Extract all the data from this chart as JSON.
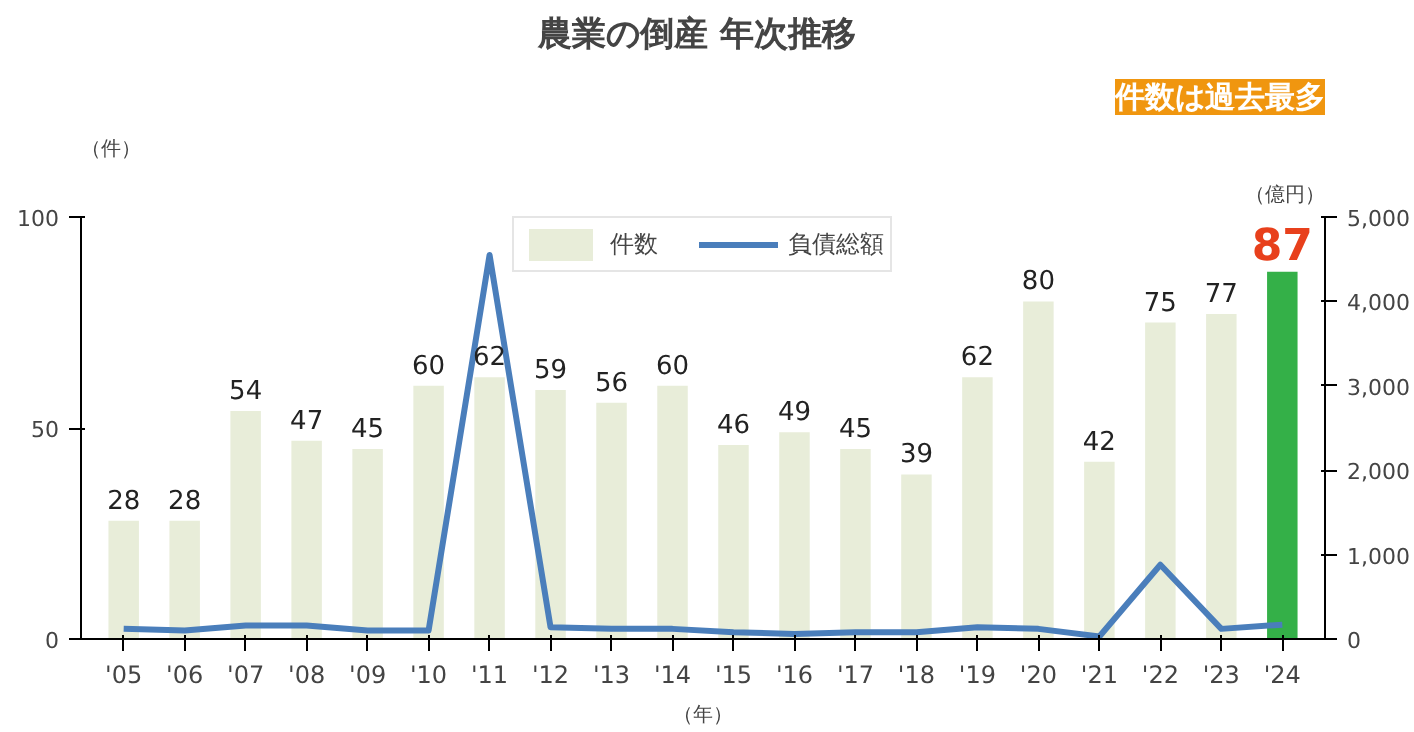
{
  "chart_data": {
    "type": "bar",
    "title": "農業の倒産  年次推移",
    "categories": [
      "'05",
      "'06",
      "'07",
      "'08",
      "'09",
      "'10",
      "'11",
      "'12",
      "'13",
      "'14",
      "'15",
      "'16",
      "'17",
      "'18",
      "'19",
      "'20",
      "'21",
      "'22",
      "'23",
      "'24"
    ],
    "series": [
      {
        "name": "件数",
        "color": "#e8edd9",
        "colors": [
          "#e8edd9",
          "#e8edd9",
          "#e8edd9",
          "#e8edd9",
          "#e8edd9",
          "#e8edd9",
          "#e8edd9",
          "#e8edd9",
          "#e8edd9",
          "#e8edd9",
          "#e8edd9",
          "#e8edd9",
          "#e8edd9",
          "#e8edd9",
          "#e8edd9",
          "#e8edd9",
          "#e8edd9",
          "#e8edd9",
          "#e8edd9",
          "#34b048"
        ],
        "values": [
          28,
          28,
          54,
          47,
          45,
          60,
          62,
          59,
          56,
          60,
          46,
          49,
          45,
          39,
          62,
          80,
          42,
          75,
          77,
          87
        ],
        "value_labels": [
          "28",
          "28",
          "54",
          "47",
          "45",
          "60",
          "62",
          "59",
          "56",
          "60",
          "46",
          "49",
          "45",
          "39",
          "62",
          "80",
          "42",
          "75",
          "77",
          "87"
        ]
      },
      {
        "name": "負債総額",
        "type": "line",
        "axis": "y2",
        "color": "#4a7ebb",
        "values": [
          120,
          100,
          160,
          160,
          100,
          100,
          4550,
          140,
          120,
          120,
          80,
          60,
          80,
          80,
          140,
          120,
          30,
          880,
          120,
          170
        ]
      }
    ],
    "xlabel": "（年）",
    "ylabel": "（件）",
    "y2label": "（億円）",
    "ylim": [
      0,
      100
    ],
    "yticks": [
      0,
      50,
      100
    ],
    "y2lim": [
      0,
      5000
    ],
    "y2ticks": [
      0,
      {
        "value": 1000,
        "label": "1,000"
      },
      {
        "value": 2000,
        "label": "2,000"
      },
      {
        "value": 3000,
        "label": "3,000"
      },
      {
        "value": 4000,
        "label": "4,000"
      },
      {
        "value": 5000,
        "label": "5,000"
      }
    ],
    "annotations": [
      "件数は過去最多"
    ],
    "legend": "top",
    "grid": false,
    "marker": "none",
    "line_style": "solid"
  }
}
